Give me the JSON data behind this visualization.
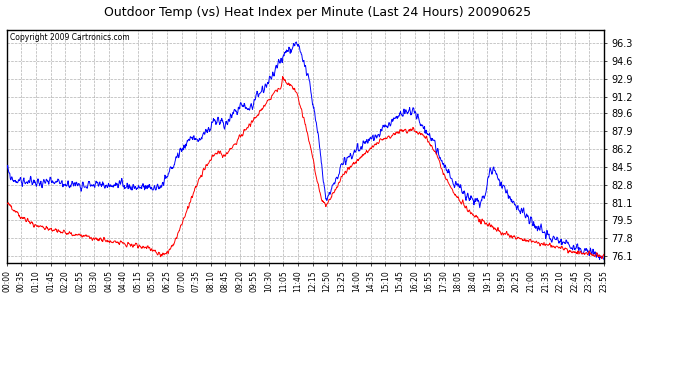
{
  "title": "Outdoor Temp (vs) Heat Index per Minute (Last 24 Hours) 20090625",
  "copyright": "Copyright 2009 Cartronics.com",
  "background_color": "#ffffff",
  "plot_bg_color": "#ffffff",
  "grid_color": "#aaaaaa",
  "blue_color": "#0000ff",
  "red_color": "#ff0000",
  "ylim_min": 75.5,
  "ylim_max": 97.5,
  "yticks": [
    76.1,
    77.8,
    79.5,
    81.1,
    82.8,
    84.5,
    86.2,
    87.9,
    89.6,
    91.2,
    92.9,
    94.6,
    96.3
  ],
  "xtick_labels": [
    "00:00",
    "00:35",
    "01:10",
    "01:45",
    "02:20",
    "02:55",
    "03:30",
    "04:05",
    "04:40",
    "05:15",
    "05:50",
    "06:25",
    "07:00",
    "07:35",
    "08:10",
    "08:45",
    "09:20",
    "09:55",
    "10:30",
    "11:05",
    "11:40",
    "12:15",
    "12:50",
    "13:25",
    "14:00",
    "14:35",
    "15:10",
    "15:45",
    "16:20",
    "16:55",
    "17:30",
    "18:05",
    "18:40",
    "19:15",
    "19:50",
    "20:25",
    "21:00",
    "21:35",
    "22:10",
    "22:45",
    "23:20",
    "23:55"
  ],
  "n_points": 1440
}
